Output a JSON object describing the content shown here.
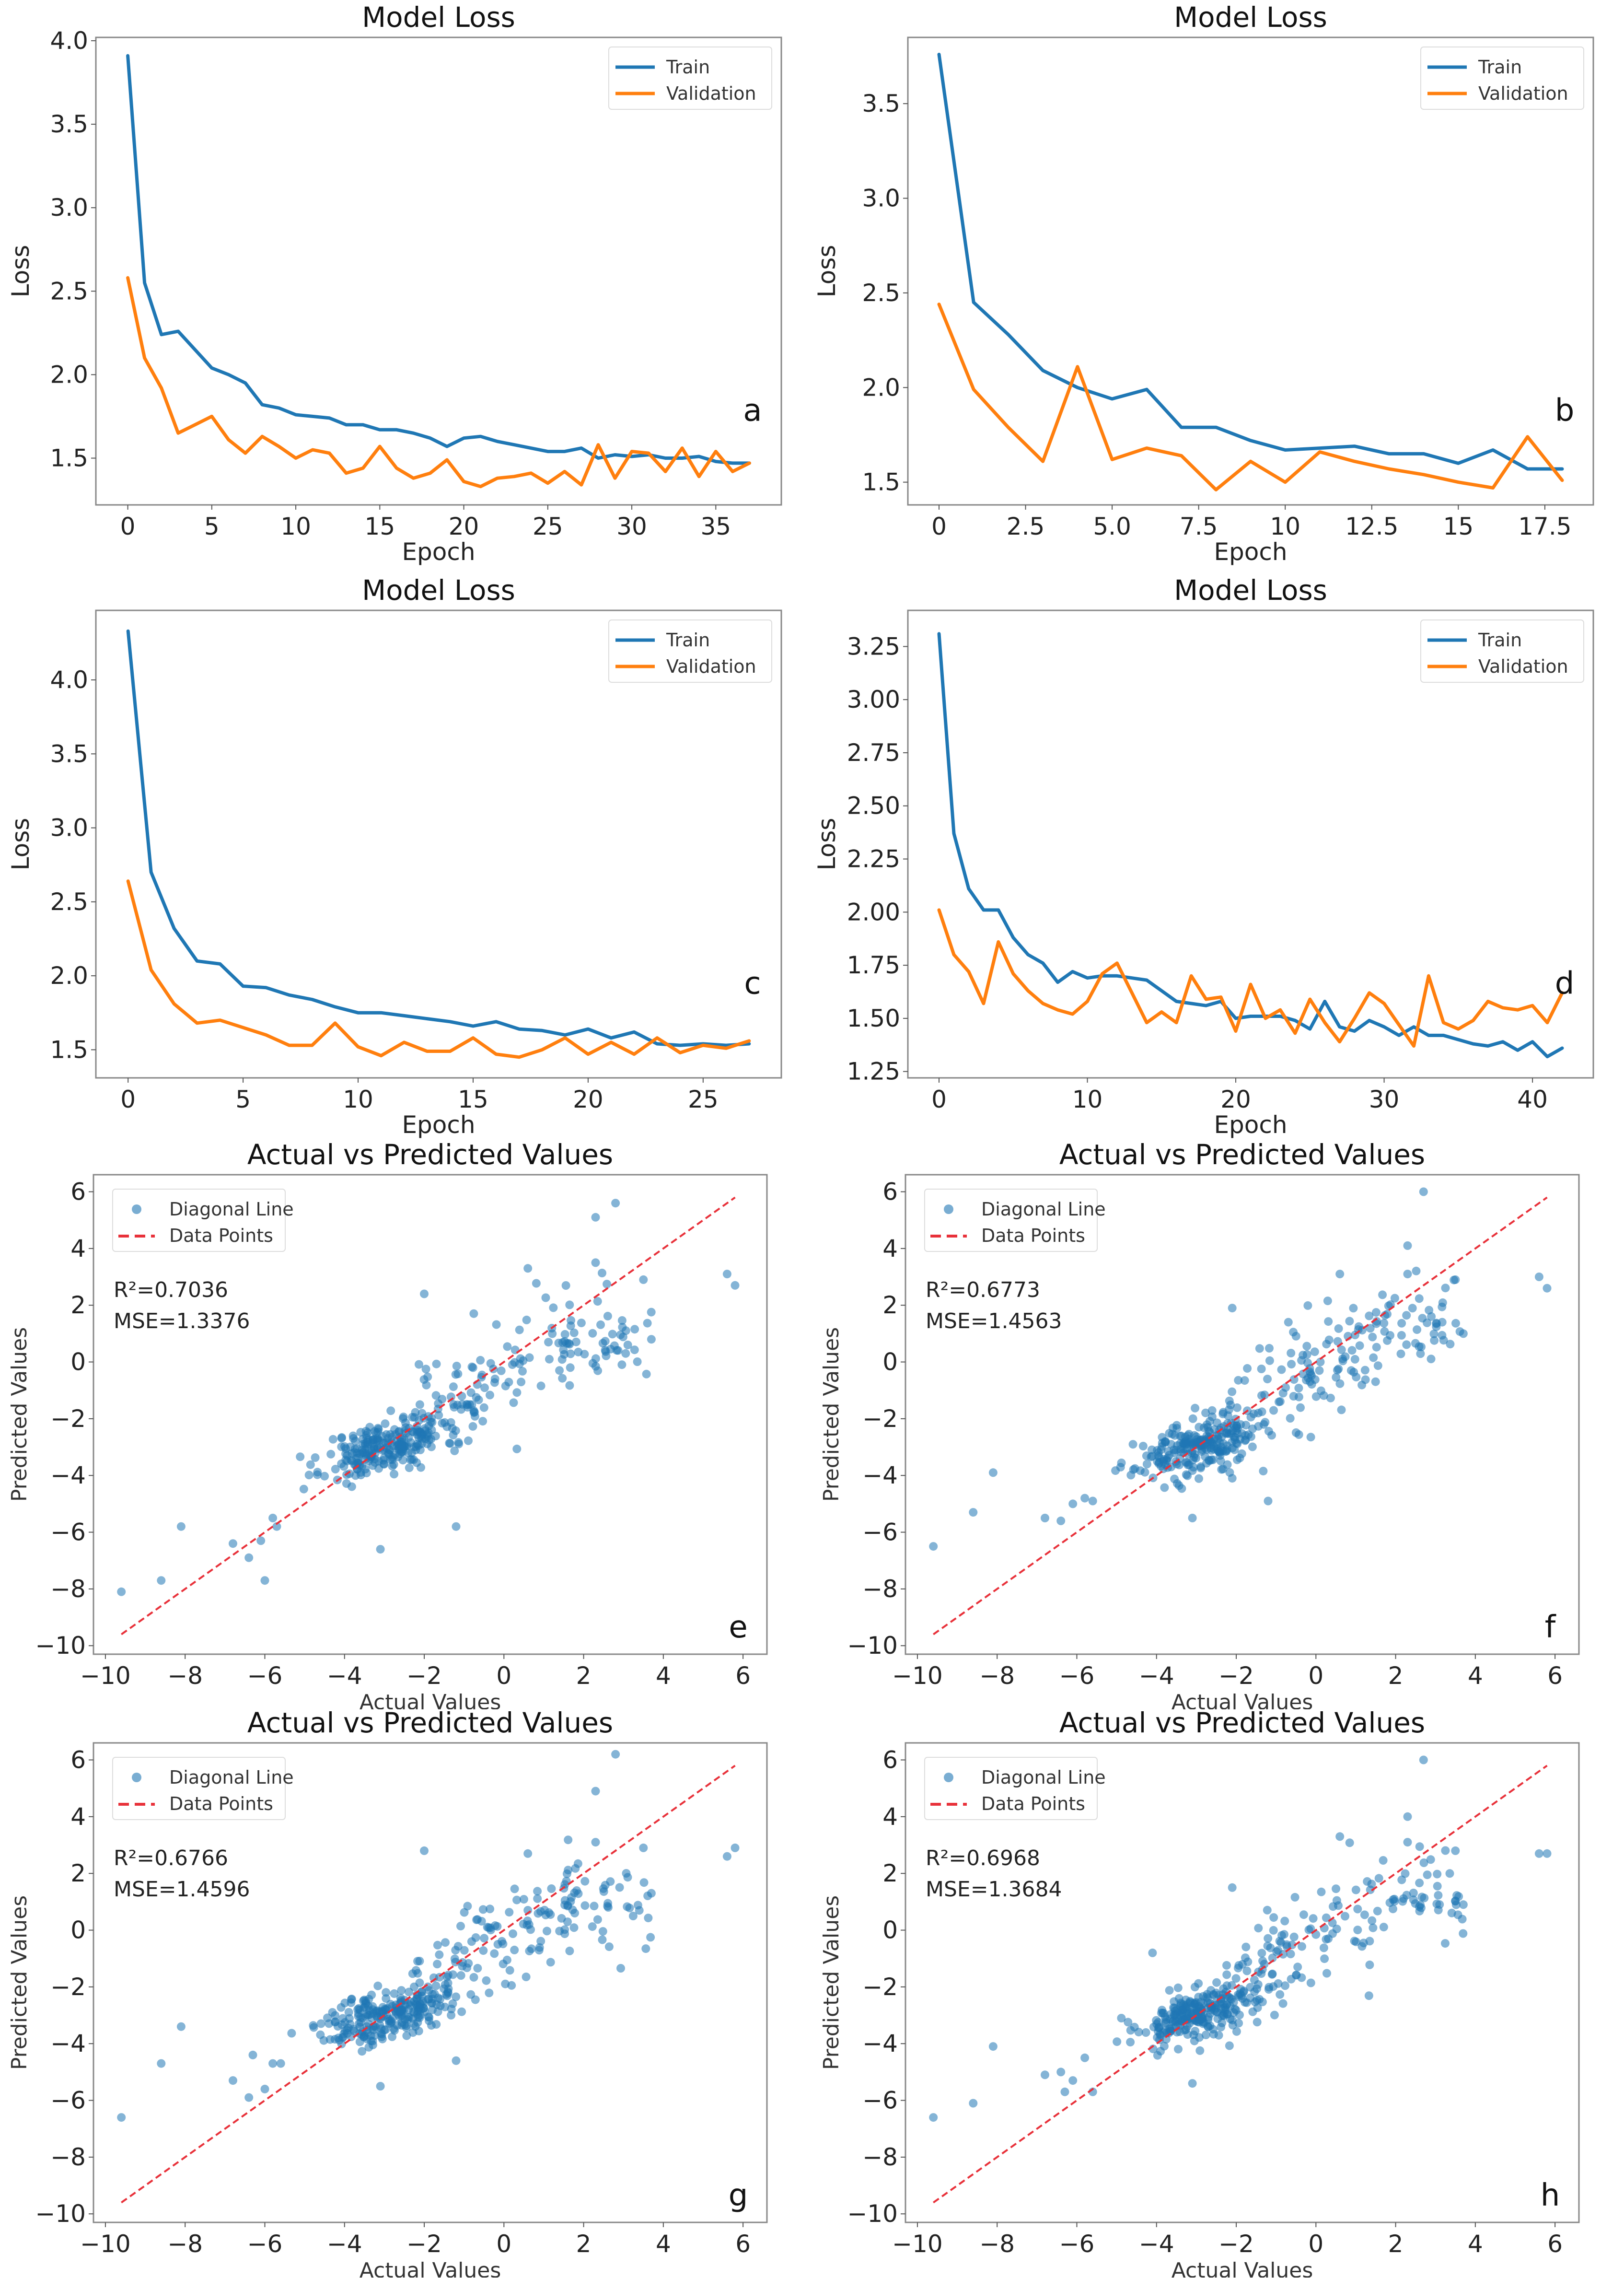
{
  "figure": {
    "panels_order": [
      "a",
      "b",
      "c",
      "d",
      "e",
      "f",
      "g",
      "h"
    ]
  },
  "colors": {
    "train": "#1f77b4",
    "validation": "#ff7f0e",
    "scatter": "#1f77b4",
    "diagonal": "#e8313a",
    "frame": "#888888"
  },
  "chart_data": [
    {
      "id": "a",
      "type": "line",
      "title": "Model Loss",
      "xlabel": "Epoch",
      "ylabel": "Loss",
      "panel_letter": "a",
      "xlim": [
        -1.9,
        38.9
      ],
      "ylim": [
        1.22,
        4.02
      ],
      "xticks": [
        0,
        5,
        10,
        15,
        20,
        25,
        30,
        35
      ],
      "xtick_labels": [
        "0",
        "5",
        "10",
        "15",
        "20",
        "25",
        "30",
        "35"
      ],
      "yticks": [
        1.5,
        2.0,
        2.5,
        3.0,
        3.5,
        4.0
      ],
      "ytick_labels": [
        "1.5",
        "2.0",
        "2.5",
        "3.0",
        "3.5",
        "4.0"
      ],
      "legend": {
        "position": "upper-right",
        "entries": [
          "Train",
          "Validation"
        ]
      },
      "series": [
        {
          "name": "Train",
          "values": [
            3.91,
            2.55,
            2.24,
            2.26,
            2.15,
            2.04,
            2.0,
            1.95,
            1.82,
            1.8,
            1.76,
            1.75,
            1.74,
            1.7,
            1.7,
            1.67,
            1.67,
            1.65,
            1.62,
            1.57,
            1.62,
            1.63,
            1.6,
            1.58,
            1.56,
            1.54,
            1.54,
            1.56,
            1.5,
            1.52,
            1.51,
            1.52,
            1.5,
            1.5,
            1.51,
            1.48,
            1.47,
            1.47
          ]
        },
        {
          "name": "Validation",
          "values": [
            2.58,
            2.1,
            1.92,
            1.65,
            1.7,
            1.75,
            1.61,
            1.53,
            1.63,
            1.57,
            1.5,
            1.55,
            1.53,
            1.41,
            1.44,
            1.57,
            1.44,
            1.38,
            1.41,
            1.49,
            1.36,
            1.33,
            1.38,
            1.39,
            1.41,
            1.35,
            1.42,
            1.34,
            1.58,
            1.38,
            1.54,
            1.53,
            1.42,
            1.56,
            1.39,
            1.54,
            1.42,
            1.47
          ]
        }
      ]
    },
    {
      "id": "b",
      "type": "line",
      "title": "Model Loss",
      "xlabel": "Epoch",
      "ylabel": "Loss",
      "panel_letter": "b",
      "xlim": [
        -0.9,
        18.9
      ],
      "ylim": [
        1.38,
        3.85
      ],
      "xticks": [
        0,
        2.5,
        5.0,
        7.5,
        10,
        12.5,
        15,
        17.5
      ],
      "xtick_labels": [
        "0",
        "2.5",
        "5.0",
        "7.5",
        "10",
        "12.5",
        "15",
        "17.5"
      ],
      "yticks": [
        1.5,
        2.0,
        2.5,
        3.0,
        3.5
      ],
      "ytick_labels": [
        "1.5",
        "2.0",
        "2.5",
        "3.0",
        "3.5"
      ],
      "legend": {
        "position": "upper-right",
        "entries": [
          "Train",
          "Validation"
        ]
      },
      "series": [
        {
          "name": "Train",
          "values": [
            3.76,
            2.45,
            2.28,
            2.09,
            2.0,
            1.94,
            1.99,
            1.79,
            1.79,
            1.72,
            1.67,
            1.68,
            1.69,
            1.65,
            1.65,
            1.6,
            1.67,
            1.57,
            1.57
          ]
        },
        {
          "name": "Validation",
          "values": [
            2.44,
            1.99,
            1.79,
            1.61,
            2.11,
            1.62,
            1.68,
            1.64,
            1.46,
            1.61,
            1.5,
            1.66,
            1.61,
            1.57,
            1.54,
            1.5,
            1.47,
            1.74,
            1.51
          ]
        }
      ]
    },
    {
      "id": "c",
      "type": "line",
      "title": "Model Loss",
      "xlabel": "Epoch",
      "ylabel": "Loss",
      "panel_letter": "c",
      "xlim": [
        -1.4,
        28.4
      ],
      "ylim": [
        1.31,
        4.47
      ],
      "xticks": [
        0,
        5,
        10,
        15,
        20,
        25
      ],
      "xtick_labels": [
        "0",
        "5",
        "10",
        "15",
        "20",
        "25"
      ],
      "yticks": [
        1.5,
        2.0,
        2.5,
        3.0,
        3.5,
        4.0
      ],
      "ytick_labels": [
        "1.5",
        "2.0",
        "2.5",
        "3.0",
        "3.5",
        "4.0"
      ],
      "legend": {
        "position": "upper-right",
        "entries": [
          "Train",
          "Validation"
        ]
      },
      "series": [
        {
          "name": "Train",
          "values": [
            4.33,
            2.7,
            2.32,
            2.1,
            2.08,
            1.93,
            1.92,
            1.87,
            1.84,
            1.79,
            1.75,
            1.75,
            1.73,
            1.71,
            1.69,
            1.66,
            1.69,
            1.64,
            1.63,
            1.6,
            1.64,
            1.58,
            1.62,
            1.54,
            1.53,
            1.54,
            1.53,
            1.54
          ]
        },
        {
          "name": "Validation",
          "values": [
            2.64,
            2.04,
            1.81,
            1.68,
            1.7,
            1.65,
            1.6,
            1.53,
            1.53,
            1.68,
            1.52,
            1.46,
            1.55,
            1.49,
            1.49,
            1.58,
            1.47,
            1.45,
            1.5,
            1.58,
            1.47,
            1.55,
            1.47,
            1.58,
            1.48,
            1.53,
            1.51,
            1.56
          ]
        }
      ]
    },
    {
      "id": "d",
      "type": "line",
      "title": "Model Loss",
      "xlabel": "Epoch",
      "ylabel": "Loss",
      "panel_letter": "d",
      "xlim": [
        -2.1,
        44.1
      ],
      "ylim": [
        1.22,
        3.42
      ],
      "xticks": [
        0,
        10,
        20,
        30,
        40
      ],
      "xtick_labels": [
        "0",
        "10",
        "20",
        "30",
        "40"
      ],
      "yticks": [
        1.25,
        1.5,
        1.75,
        2.0,
        2.25,
        2.5,
        2.75,
        3.0,
        3.25
      ],
      "ytick_labels": [
        "1.25",
        "1.50",
        "1.75",
        "2.00",
        "2.25",
        "2.50",
        "2.75",
        "3.00",
        "3.25"
      ],
      "legend": {
        "position": "upper-right",
        "entries": [
          "Train",
          "Validation"
        ]
      },
      "series": [
        {
          "name": "Train",
          "values": [
            3.31,
            2.37,
            2.11,
            2.01,
            2.01,
            1.88,
            1.8,
            1.76,
            1.67,
            1.72,
            1.69,
            1.7,
            1.7,
            1.69,
            1.68,
            1.63,
            1.58,
            1.57,
            1.56,
            1.58,
            1.5,
            1.51,
            1.51,
            1.51,
            1.49,
            1.45,
            1.58,
            1.46,
            1.44,
            1.49,
            1.46,
            1.42,
            1.46,
            1.42,
            1.42,
            1.4,
            1.38,
            1.37,
            1.39,
            1.35,
            1.39,
            1.32,
            1.36
          ]
        },
        {
          "name": "Validation",
          "values": [
            2.01,
            1.8,
            1.72,
            1.57,
            1.86,
            1.71,
            1.63,
            1.57,
            1.54,
            1.52,
            1.58,
            1.71,
            1.76,
            1.62,
            1.48,
            1.53,
            1.48,
            1.7,
            1.59,
            1.6,
            1.44,
            1.66,
            1.5,
            1.54,
            1.43,
            1.59,
            1.48,
            1.39,
            1.5,
            1.62,
            1.57,
            1.47,
            1.37,
            1.7,
            1.48,
            1.45,
            1.49,
            1.58,
            1.55,
            1.54,
            1.56,
            1.48,
            1.62
          ]
        }
      ]
    },
    {
      "id": "e",
      "type": "scatter",
      "title": "Actual vs Predicted Values",
      "xlabel": "Actual Values",
      "ylabel": "Predicted Values",
      "panel_letter": "e",
      "xlim": [
        -10.3,
        6.6
      ],
      "ylim": [
        -10.3,
        6.6
      ],
      "xticks": [
        -10,
        -8,
        -6,
        -4,
        -2,
        0,
        2,
        4,
        6
      ],
      "xtick_labels": [
        "−10",
        "−8",
        "−6",
        "−4",
        "−2",
        "0",
        "2",
        "4",
        "6"
      ],
      "yticks": [
        -10,
        -8,
        -6,
        -4,
        -2,
        0,
        2,
        4,
        6
      ],
      "ytick_labels": [
        "−10",
        "−8",
        "−6",
        "−4",
        "−2",
        "0",
        "2",
        "4",
        "6"
      ],
      "legend": {
        "position": "upper-left",
        "entries": [
          "Diagonal Line",
          "Data Points"
        ]
      },
      "annotations": [
        "R²=0.7036",
        "MSE=1.3376"
      ],
      "diagonal": {
        "from": [
          -9.6,
          -9.6
        ],
        "to": [
          5.8,
          5.8
        ]
      },
      "seed": 11,
      "outliers": [
        [
          -9.6,
          -8.1
        ],
        [
          -8.6,
          -7.7
        ],
        [
          -8.1,
          -5.8
        ],
        [
          -6.8,
          -6.4
        ],
        [
          -6.4,
          -6.9
        ],
        [
          -6.1,
          -6.3
        ],
        [
          -6.0,
          -7.7
        ],
        [
          -5.8,
          -5.5
        ],
        [
          -5.7,
          -5.8
        ],
        [
          -3.1,
          -6.6
        ],
        [
          -1.2,
          -5.8
        ],
        [
          -2.0,
          2.4
        ],
        [
          2.3,
          5.1
        ],
        [
          2.8,
          5.6
        ],
        [
          5.6,
          3.1
        ],
        [
          5.8,
          2.7
        ],
        [
          0.6,
          3.3
        ],
        [
          2.3,
          3.5
        ],
        [
          3.5,
          2.9
        ],
        [
          3.7,
          0.8
        ]
      ]
    },
    {
      "id": "f",
      "type": "scatter",
      "title": "Actual vs Predicted Values",
      "xlabel": "Actual Values",
      "ylabel": "Predicted Values",
      "panel_letter": "f",
      "xlim": [
        -10.3,
        6.6
      ],
      "ylim": [
        -10.3,
        6.6
      ],
      "xticks": [
        -10,
        -8,
        -6,
        -4,
        -2,
        0,
        2,
        4,
        6
      ],
      "xtick_labels": [
        "−10",
        "−8",
        "−6",
        "−4",
        "−2",
        "0",
        "2",
        "4",
        "6"
      ],
      "yticks": [
        -10,
        -8,
        -6,
        -4,
        -2,
        0,
        2,
        4,
        6
      ],
      "ytick_labels": [
        "−10",
        "−8",
        "−6",
        "−4",
        "−2",
        "0",
        "2",
        "4",
        "6"
      ],
      "legend": {
        "position": "upper-left",
        "entries": [
          "Diagonal Line",
          "Data Points"
        ]
      },
      "annotations": [
        "R²=0.6773",
        "MSE=1.4563"
      ],
      "diagonal": {
        "from": [
          -9.6,
          -9.6
        ],
        "to": [
          5.8,
          5.8
        ]
      },
      "seed": 23,
      "outliers": [
        [
          -9.6,
          -6.5
        ],
        [
          -8.6,
          -5.3
        ],
        [
          -8.1,
          -3.9
        ],
        [
          -6.8,
          -5.5
        ],
        [
          -6.4,
          -5.6
        ],
        [
          -6.1,
          -5.0
        ],
        [
          -5.8,
          -4.8
        ],
        [
          -5.6,
          -4.9
        ],
        [
          -3.1,
          -5.5
        ],
        [
          -1.2,
          -4.9
        ],
        [
          -2.1,
          -4.1
        ],
        [
          -2.1,
          1.9
        ],
        [
          2.3,
          4.1
        ],
        [
          2.7,
          6.0
        ],
        [
          5.6,
          3.0
        ],
        [
          5.8,
          2.6
        ],
        [
          0.6,
          3.1
        ],
        [
          2.3,
          3.1
        ],
        [
          3.5,
          2.9
        ],
        [
          3.7,
          1.0
        ]
      ]
    },
    {
      "id": "g",
      "type": "scatter",
      "title": "Actual vs Predicted Values",
      "xlabel": "Actual Values",
      "ylabel": "Predicted Values",
      "panel_letter": "g",
      "xlim": [
        -10.3,
        6.6
      ],
      "ylim": [
        -10.3,
        6.6
      ],
      "xticks": [
        -10,
        -8,
        -6,
        -4,
        -2,
        0,
        2,
        4,
        6
      ],
      "xtick_labels": [
        "−10",
        "−8",
        "−6",
        "−4",
        "−2",
        "0",
        "2",
        "4",
        "6"
      ],
      "yticks": [
        -10,
        -8,
        -6,
        -4,
        -2,
        0,
        2,
        4,
        6
      ],
      "ytick_labels": [
        "−10",
        "−8",
        "−6",
        "−4",
        "−2",
        "0",
        "2",
        "4",
        "6"
      ],
      "legend": {
        "position": "upper-left",
        "entries": [
          "Diagonal Line",
          "Data Points"
        ]
      },
      "annotations": [
        "R²=0.6766",
        "MSE=1.4596"
      ],
      "diagonal": {
        "from": [
          -9.6,
          -9.6
        ],
        "to": [
          5.8,
          5.8
        ]
      },
      "seed": 37,
      "outliers": [
        [
          -9.6,
          -6.6
        ],
        [
          -8.6,
          -4.7
        ],
        [
          -8.1,
          -3.4
        ],
        [
          -6.8,
          -5.3
        ],
        [
          -6.4,
          -5.9
        ],
        [
          -6.3,
          -4.4
        ],
        [
          -6.0,
          -5.6
        ],
        [
          -5.8,
          -4.7
        ],
        [
          -5.6,
          -4.7
        ],
        [
          -3.1,
          -5.5
        ],
        [
          -1.2,
          -4.6
        ],
        [
          -2.0,
          2.8
        ],
        [
          2.3,
          4.9
        ],
        [
          2.8,
          6.2
        ],
        [
          5.6,
          2.6
        ],
        [
          5.8,
          2.9
        ],
        [
          0.6,
          2.7
        ],
        [
          2.3,
          3.1
        ],
        [
          3.5,
          2.9
        ],
        [
          3.7,
          1.3
        ]
      ]
    },
    {
      "id": "h",
      "type": "scatter",
      "title": "Actual vs Predicted Values",
      "xlabel": "Actual Values",
      "ylabel": "Predicted Values",
      "panel_letter": "h",
      "xlim": [
        -10.3,
        6.6
      ],
      "ylim": [
        -10.3,
        6.6
      ],
      "xticks": [
        -10,
        -8,
        -6,
        -4,
        -2,
        0,
        2,
        4,
        6
      ],
      "xtick_labels": [
        "−10",
        "−8",
        "−6",
        "−4",
        "−2",
        "0",
        "2",
        "4",
        "6"
      ],
      "yticks": [
        -10,
        -8,
        -6,
        -4,
        -2,
        0,
        2,
        4,
        6
      ],
      "ytick_labels": [
        "−10",
        "−8",
        "−6",
        "−4",
        "−2",
        "0",
        "2",
        "4",
        "6"
      ],
      "legend": {
        "position": "upper-left",
        "entries": [
          "Diagonal Line",
          "Data Points"
        ]
      },
      "annotations": [
        "R²=0.6968",
        "MSE=1.3684"
      ],
      "diagonal": {
        "from": [
          -9.6,
          -9.6
        ],
        "to": [
          5.8,
          5.8
        ]
      },
      "seed": 53,
      "outliers": [
        [
          -9.6,
          -6.6
        ],
        [
          -8.6,
          -6.1
        ],
        [
          -8.1,
          -4.1
        ],
        [
          -6.8,
          -5.1
        ],
        [
          -6.4,
          -5.0
        ],
        [
          -6.3,
          -5.7
        ],
        [
          -6.1,
          -5.3
        ],
        [
          -5.8,
          -4.5
        ],
        [
          -5.6,
          -5.7
        ],
        [
          -3.1,
          -5.4
        ],
        [
          -4.1,
          -0.8
        ],
        [
          -2.1,
          1.5
        ],
        [
          2.3,
          4.0
        ],
        [
          2.7,
          6.0
        ],
        [
          5.6,
          2.7
        ],
        [
          5.8,
          2.7
        ],
        [
          0.6,
          3.3
        ],
        [
          2.3,
          3.1
        ],
        [
          3.5,
          2.8
        ],
        [
          3.7,
          0.9
        ]
      ]
    }
  ]
}
